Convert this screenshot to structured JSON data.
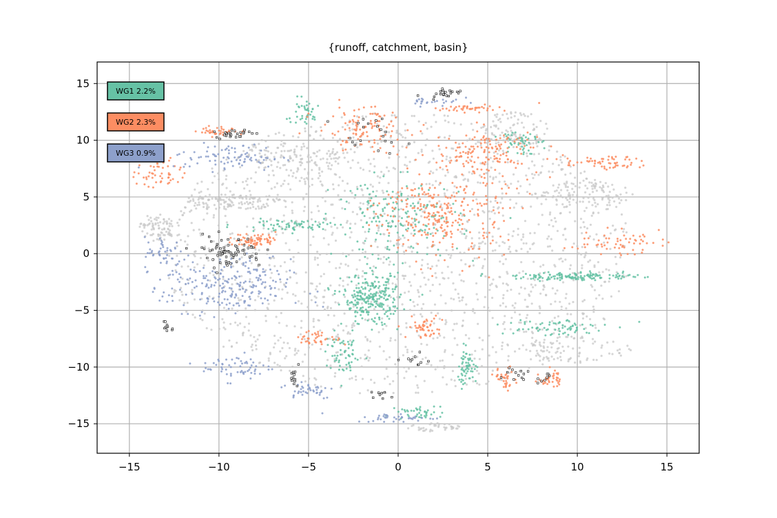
{
  "chart_data": {
    "type": "scatter",
    "title": "{runoff, catchment, basin}",
    "xlabel": "",
    "ylabel": "",
    "xlim": [
      -16.8,
      16.8
    ],
    "ylim": [
      -17.6,
      16.9
    ],
    "xticks": [
      -15,
      -10,
      -5,
      0,
      5,
      10,
      15
    ],
    "yticks": [
      -15,
      -10,
      -5,
      0,
      5,
      10,
      15
    ],
    "xtick_labels": [
      "−15",
      "−10",
      "−5",
      "0",
      "5",
      "10",
      "15"
    ],
    "ytick_labels": [
      "−15",
      "−10",
      "−5",
      "0",
      "5",
      "10",
      "15"
    ],
    "grid": true,
    "legend_placement": "top-left",
    "background_points": {
      "name": "",
      "color": "#c8c8c8",
      "clusters": [
        {
          "cx": 0,
          "cy": 0,
          "rx": 13,
          "ry": 12.5,
          "n": 1600
        },
        {
          "cx": -9,
          "cy": 4.6,
          "rx": 3,
          "ry": 0.7,
          "n": 120
        },
        {
          "cx": -13.5,
          "cy": 2.3,
          "rx": 1,
          "ry": 1.2,
          "n": 80
        },
        {
          "cx": 10.3,
          "cy": 5.2,
          "rx": 3,
          "ry": 1.2,
          "n": 100
        },
        {
          "cx": 10,
          "cy": -8.5,
          "rx": 3,
          "ry": 1.2,
          "n": 80
        },
        {
          "cx": 2,
          "cy": -15.3,
          "rx": 1.5,
          "ry": 0.4,
          "n": 40
        },
        {
          "cx": 6.5,
          "cy": 11,
          "rx": 2,
          "ry": 1.5,
          "n": 80
        },
        {
          "cx": -6,
          "cy": 8.5,
          "rx": 3,
          "ry": 1.3,
          "n": 90
        }
      ]
    },
    "series": [
      {
        "name": "WG1",
        "legend_label": "WG1 2.2%",
        "color": "#66c2a5",
        "clusters": [
          {
            "cx": -1.5,
            "cy": -4,
            "rx": 1.6,
            "ry": 2.2,
            "n": 260
          },
          {
            "cx": 0,
            "cy": 3,
            "rx": 3.5,
            "ry": 3.5,
            "n": 180
          },
          {
            "cx": 10,
            "cy": -2,
            "rx": 3.5,
            "ry": 0.35,
            "n": 140
          },
          {
            "cx": -3,
            "cy": -9,
            "rx": 1,
            "ry": 1.8,
            "n": 60
          },
          {
            "cx": 3.8,
            "cy": -10,
            "rx": 0.6,
            "ry": 1.6,
            "n": 60
          },
          {
            "cx": 1.2,
            "cy": -14,
            "rx": 1.2,
            "ry": 0.6,
            "n": 40
          },
          {
            "cx": -6,
            "cy": 2.5,
            "rx": 3,
            "ry": 0.5,
            "n": 70
          },
          {
            "cx": 6.8,
            "cy": 10,
            "rx": 1,
            "ry": 1.2,
            "n": 50
          },
          {
            "cx": 8.5,
            "cy": -6.5,
            "rx": 3,
            "ry": 0.8,
            "n": 70
          },
          {
            "cx": -5.3,
            "cy": 12.5,
            "rx": 1,
            "ry": 1.2,
            "n": 40
          }
        ]
      },
      {
        "name": "WG2",
        "legend_label": "WG2 2.3%",
        "color": "#fc8d62",
        "clusters": [
          {
            "cx": 2.5,
            "cy": 3.5,
            "rx": 3.5,
            "ry": 4,
            "n": 280
          },
          {
            "cx": 5,
            "cy": 9,
            "rx": 3,
            "ry": 2,
            "n": 140
          },
          {
            "cx": -2,
            "cy": 11,
            "rx": 2.5,
            "ry": 2,
            "n": 110
          },
          {
            "cx": 11.5,
            "cy": 8,
            "rx": 2.2,
            "ry": 0.6,
            "n": 60
          },
          {
            "cx": 12,
            "cy": 1,
            "rx": 2.5,
            "ry": 1,
            "n": 60
          },
          {
            "cx": -13.3,
            "cy": 7,
            "rx": 1.3,
            "ry": 1.4,
            "n": 50
          },
          {
            "cx": -9.8,
            "cy": 10.8,
            "rx": 1.3,
            "ry": 0.4,
            "n": 40
          },
          {
            "cx": -8,
            "cy": 1.2,
            "rx": 1.2,
            "ry": 0.6,
            "n": 70
          },
          {
            "cx": 8.5,
            "cy": -11,
            "rx": 0.6,
            "ry": 0.8,
            "n": 40
          },
          {
            "cx": 6,
            "cy": -11,
            "rx": 0.6,
            "ry": 1,
            "n": 35
          },
          {
            "cx": -4.5,
            "cy": -7.5,
            "rx": 1.3,
            "ry": 0.6,
            "n": 40
          },
          {
            "cx": 1.5,
            "cy": -6.5,
            "rx": 1,
            "ry": 1,
            "n": 50
          },
          {
            "cx": 4,
            "cy": 12.8,
            "rx": 2,
            "ry": 0.3,
            "n": 40
          }
        ]
      },
      {
        "name": "WG3",
        "legend_label": "WG3 0.9%",
        "color": "#8da0cb",
        "clusters": [
          {
            "cx": -9.5,
            "cy": -3,
            "rx": 3.5,
            "ry": 2.5,
            "n": 220
          },
          {
            "cx": -9.5,
            "cy": 8.5,
            "rx": 3,
            "ry": 1.2,
            "n": 90
          },
          {
            "cx": -9,
            "cy": -10,
            "rx": 2,
            "ry": 1.2,
            "n": 60
          },
          {
            "cx": -5,
            "cy": -12,
            "rx": 1.5,
            "ry": 0.8,
            "n": 40
          },
          {
            "cx": -13,
            "cy": 0,
            "rx": 1.2,
            "ry": 1.5,
            "n": 50
          },
          {
            "cx": 0,
            "cy": -14.5,
            "rx": 2.5,
            "ry": 0.4,
            "n": 40
          },
          {
            "cx": 2,
            "cy": 13.5,
            "rx": 1.5,
            "ry": 0.5,
            "n": 25
          }
        ]
      },
      {
        "name": "",
        "color": "#ffffff",
        "clusters": [
          {
            "cx": -9.5,
            "cy": 0.2,
            "rx": 2,
            "ry": 1.4,
            "n": 70
          },
          {
            "cx": -9.2,
            "cy": 10.6,
            "rx": 1,
            "ry": 0.4,
            "n": 25
          },
          {
            "cx": 2.5,
            "cy": 14.2,
            "rx": 1,
            "ry": 0.4,
            "n": 20
          },
          {
            "cx": -1.5,
            "cy": 10.5,
            "rx": 2,
            "ry": 1.5,
            "n": 20
          },
          {
            "cx": -12.8,
            "cy": -6.5,
            "rx": 0.3,
            "ry": 0.8,
            "n": 10
          },
          {
            "cx": -5.8,
            "cy": -11,
            "rx": 0.3,
            "ry": 0.9,
            "n": 12
          },
          {
            "cx": 6.5,
            "cy": -10.5,
            "rx": 0.8,
            "ry": 0.8,
            "n": 12
          },
          {
            "cx": 8.3,
            "cy": -11,
            "rx": 0.5,
            "ry": 0.5,
            "n": 8
          },
          {
            "cx": 1,
            "cy": -9.5,
            "rx": 0.8,
            "ry": 0.8,
            "n": 10
          },
          {
            "cx": -1,
            "cy": -12.5,
            "rx": 0.8,
            "ry": 0.5,
            "n": 8
          }
        ]
      }
    ]
  }
}
